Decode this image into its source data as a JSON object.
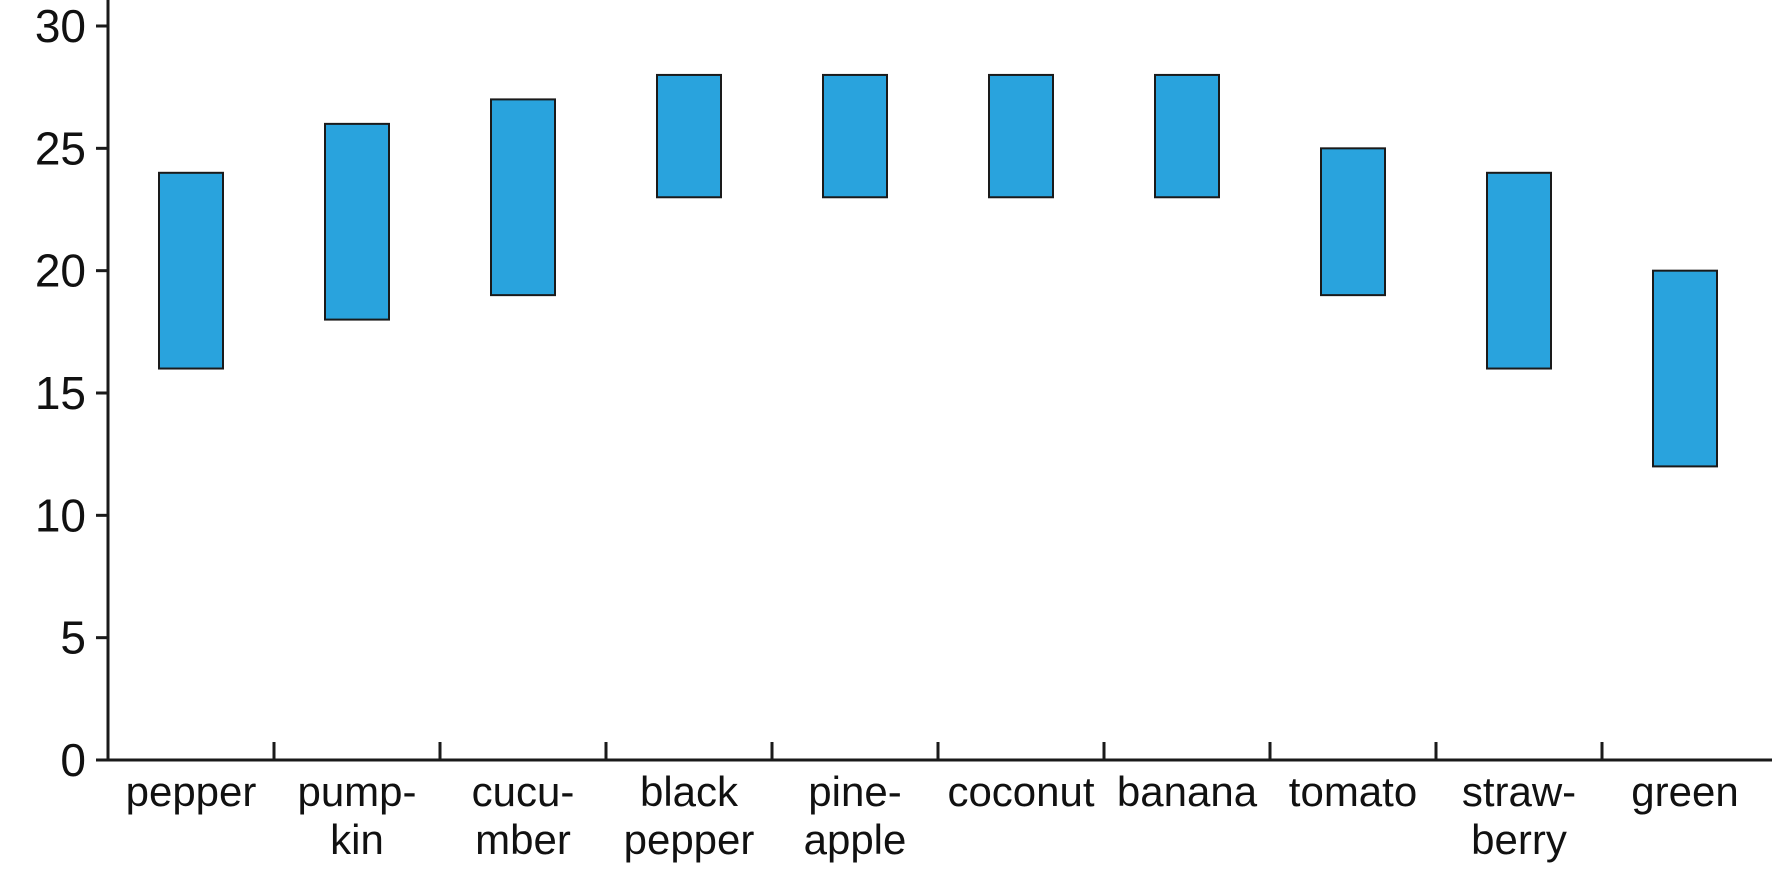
{
  "chart_data": {
    "type": "bar",
    "subtype": "floating-range",
    "title": "",
    "xlabel": "",
    "ylabel": "",
    "ylim": [
      0,
      30
    ],
    "yticks": [
      0,
      5,
      10,
      15,
      20,
      25,
      30
    ],
    "grid": false,
    "bar_color": "#29a3dd",
    "categories": [
      [
        "pepper"
      ],
      [
        "pump-",
        "kin"
      ],
      [
        "cucu-",
        "mber"
      ],
      [
        "black",
        "pepper"
      ],
      [
        "pine-",
        "apple"
      ],
      [
        "coconut"
      ],
      [
        "banana"
      ],
      [
        "tomato"
      ],
      [
        "straw-",
        "berry"
      ],
      [
        "green"
      ]
    ],
    "ranges": [
      [
        16,
        24
      ],
      [
        18,
        26
      ],
      [
        19,
        27
      ],
      [
        23,
        28
      ],
      [
        23,
        28
      ],
      [
        23,
        28
      ],
      [
        23,
        28
      ],
      [
        19,
        25
      ],
      [
        16,
        24
      ],
      [
        12,
        20
      ]
    ]
  }
}
